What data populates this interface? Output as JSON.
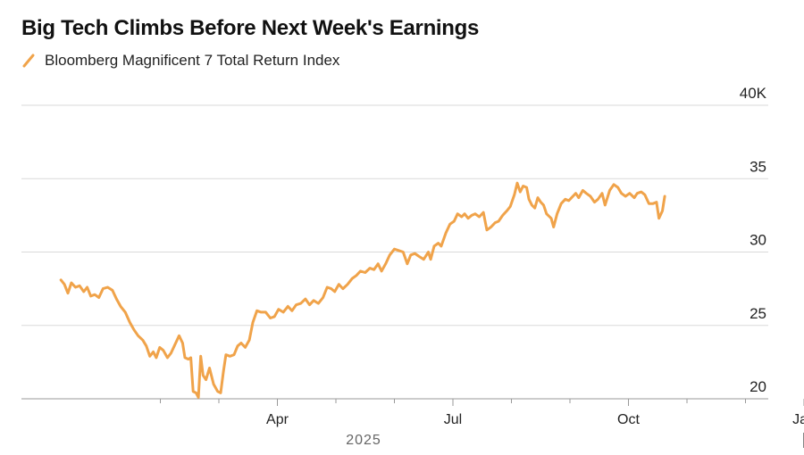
{
  "title": "Big Tech Climbs Before Next Week's Earnings",
  "legend": {
    "label": "Bloomberg Magnificent 7 Total Return Index"
  },
  "colors": {
    "series": "#F0A34A",
    "grid": "#d9d9d9",
    "axis": "#999999",
    "text": "#222222"
  },
  "chart_data": {
    "type": "line",
    "title": "Big Tech Climbs Before Next Week's Earnings",
    "xlabel": "2025",
    "ylabel": "",
    "ylim": [
      20,
      40
    ],
    "y_ticks": [
      {
        "value": 40,
        "label": "40K"
      },
      {
        "value": 35,
        "label": "35"
      },
      {
        "value": 30,
        "label": "30"
      },
      {
        "value": 25,
        "label": "25"
      },
      {
        "value": 20,
        "label": "20"
      }
    ],
    "x_tick_labels": [
      {
        "month": 3,
        "label": "Apr"
      },
      {
        "month": 6,
        "label": "Jul"
      },
      {
        "month": 9,
        "label": "Oct"
      },
      {
        "month": 12,
        "label": "Jan"
      }
    ],
    "x_minor_ticks": [
      1,
      2,
      4,
      5,
      7,
      8,
      10,
      11
    ],
    "year_label": "2025",
    "series": [
      {
        "name": "Bloomberg Magnificent 7 Total Return Index",
        "x_unit": "months since Jan 1, 2025",
        "points": [
          [
            -0.7,
            28.1
          ],
          [
            -0.64,
            27.8
          ],
          [
            -0.58,
            27.2
          ],
          [
            -0.52,
            27.9
          ],
          [
            -0.45,
            27.6
          ],
          [
            -0.38,
            27.7
          ],
          [
            -0.31,
            27.3
          ],
          [
            -0.25,
            27.6
          ],
          [
            -0.19,
            27.0
          ],
          [
            -0.12,
            27.1
          ],
          [
            -0.05,
            26.9
          ],
          [
            0.02,
            27.5
          ],
          [
            0.1,
            27.6
          ],
          [
            0.18,
            27.4
          ],
          [
            0.25,
            26.8
          ],
          [
            0.32,
            26.3
          ],
          [
            0.4,
            25.9
          ],
          [
            0.48,
            25.2
          ],
          [
            0.55,
            24.7
          ],
          [
            0.62,
            24.3
          ],
          [
            0.7,
            24.0
          ],
          [
            0.76,
            23.6
          ],
          [
            0.82,
            22.9
          ],
          [
            0.88,
            23.2
          ],
          [
            0.93,
            22.8
          ],
          [
            0.99,
            23.5
          ],
          [
            1.05,
            23.3
          ],
          [
            1.12,
            22.8
          ],
          [
            1.18,
            23.1
          ],
          [
            1.25,
            23.7
          ],
          [
            1.32,
            24.3
          ],
          [
            1.38,
            23.8
          ],
          [
            1.42,
            22.8
          ],
          [
            1.48,
            22.7
          ],
          [
            1.52,
            22.8
          ],
          [
            1.56,
            20.5
          ],
          [
            1.61,
            20.4
          ],
          [
            1.65,
            20.1
          ],
          [
            1.69,
            22.9
          ],
          [
            1.73,
            21.6
          ],
          [
            1.78,
            21.3
          ],
          [
            1.84,
            22.1
          ],
          [
            1.91,
            21.0
          ],
          [
            1.98,
            20.5
          ],
          [
            2.03,
            20.4
          ],
          [
            2.08,
            21.9
          ],
          [
            2.12,
            23.0
          ],
          [
            2.19,
            22.9
          ],
          [
            2.26,
            23.0
          ],
          [
            2.32,
            23.6
          ],
          [
            2.38,
            23.8
          ],
          [
            2.45,
            23.5
          ],
          [
            2.52,
            24.0
          ],
          [
            2.58,
            25.2
          ],
          [
            2.65,
            26.0
          ],
          [
            2.72,
            25.9
          ],
          [
            2.8,
            25.9
          ],
          [
            2.88,
            25.5
          ],
          [
            2.95,
            25.6
          ],
          [
            3.02,
            26.1
          ],
          [
            3.1,
            25.9
          ],
          [
            3.18,
            26.3
          ],
          [
            3.25,
            26.0
          ],
          [
            3.32,
            26.4
          ],
          [
            3.4,
            26.5
          ],
          [
            3.48,
            26.8
          ],
          [
            3.55,
            26.4
          ],
          [
            3.62,
            26.7
          ],
          [
            3.7,
            26.5
          ],
          [
            3.78,
            26.9
          ],
          [
            3.85,
            27.6
          ],
          [
            3.92,
            27.5
          ],
          [
            3.98,
            27.3
          ],
          [
            4.05,
            27.8
          ],
          [
            4.12,
            27.5
          ],
          [
            4.2,
            27.8
          ],
          [
            4.28,
            28.2
          ],
          [
            4.35,
            28.4
          ],
          [
            4.42,
            28.7
          ],
          [
            4.5,
            28.6
          ],
          [
            4.58,
            28.9
          ],
          [
            4.65,
            28.8
          ],
          [
            4.72,
            29.2
          ],
          [
            4.78,
            28.7
          ],
          [
            4.85,
            29.2
          ],
          [
            4.92,
            29.8
          ],
          [
            5.0,
            30.2
          ],
          [
            5.08,
            30.1
          ],
          [
            5.15,
            30.0
          ],
          [
            5.22,
            29.2
          ],
          [
            5.28,
            29.8
          ],
          [
            5.35,
            29.9
          ],
          [
            5.42,
            29.7
          ],
          [
            5.5,
            29.5
          ],
          [
            5.58,
            30.0
          ],
          [
            5.62,
            29.5
          ],
          [
            5.68,
            30.4
          ],
          [
            5.75,
            30.6
          ],
          [
            5.8,
            30.4
          ],
          [
            5.88,
            31.3
          ],
          [
            5.95,
            31.9
          ],
          [
            6.02,
            32.1
          ],
          [
            6.08,
            32.6
          ],
          [
            6.15,
            32.4
          ],
          [
            6.2,
            32.6
          ],
          [
            6.26,
            32.3
          ],
          [
            6.32,
            32.5
          ],
          [
            6.38,
            32.6
          ],
          [
            6.45,
            32.4
          ],
          [
            6.52,
            32.7
          ],
          [
            6.58,
            31.5
          ],
          [
            6.65,
            31.7
          ],
          [
            6.72,
            32.0
          ],
          [
            6.78,
            32.1
          ],
          [
            6.85,
            32.5
          ],
          [
            6.92,
            32.8
          ],
          [
            6.98,
            33.1
          ],
          [
            7.05,
            33.9
          ],
          [
            7.1,
            34.7
          ],
          [
            7.15,
            34.1
          ],
          [
            7.2,
            34.5
          ],
          [
            7.26,
            34.4
          ],
          [
            7.3,
            33.6
          ],
          [
            7.35,
            33.2
          ],
          [
            7.4,
            33.0
          ],
          [
            7.45,
            33.7
          ],
          [
            7.5,
            33.4
          ],
          [
            7.55,
            33.2
          ],
          [
            7.6,
            32.6
          ],
          [
            7.68,
            32.3
          ],
          [
            7.72,
            31.7
          ],
          [
            7.78,
            32.6
          ],
          [
            7.85,
            33.3
          ],
          [
            7.92,
            33.6
          ],
          [
            7.98,
            33.5
          ],
          [
            8.05,
            33.8
          ],
          [
            8.1,
            34.0
          ],
          [
            8.15,
            33.7
          ],
          [
            8.22,
            34.2
          ],
          [
            8.28,
            34.0
          ],
          [
            8.35,
            33.8
          ],
          [
            8.42,
            33.4
          ],
          [
            8.48,
            33.6
          ],
          [
            8.55,
            34.0
          ],
          [
            8.6,
            33.2
          ],
          [
            8.68,
            34.2
          ],
          [
            8.75,
            34.6
          ],
          [
            8.82,
            34.4
          ],
          [
            8.88,
            34.0
          ],
          [
            8.95,
            33.8
          ],
          [
            9.02,
            34.0
          ],
          [
            9.1,
            33.7
          ],
          [
            9.15,
            34.0
          ],
          [
            9.22,
            34.1
          ],
          [
            9.28,
            33.9
          ],
          [
            9.35,
            33.3
          ],
          [
            9.42,
            33.3
          ],
          [
            9.48,
            33.4
          ],
          [
            9.52,
            32.3
          ],
          [
            9.58,
            32.8
          ],
          [
            9.62,
            33.8
          ]
        ]
      }
    ]
  }
}
